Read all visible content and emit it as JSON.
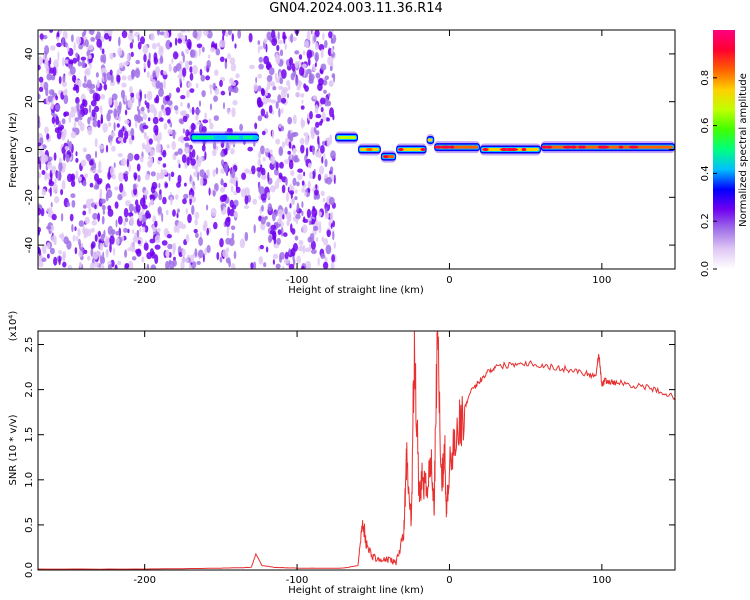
{
  "title": "GN04.2024.003.11.36.R14",
  "chart_data": [
    {
      "type": "heatmap",
      "name": "spectrogram",
      "xlabel": "Height of straight line (km)",
      "ylabel": "Frequency (Hz)",
      "xlim": [
        -270,
        148
      ],
      "ylim": [
        -50,
        50
      ],
      "xticks": [
        -200,
        -100,
        0,
        100
      ],
      "yticks": [
        -40,
        -20,
        0,
        20,
        40
      ],
      "noise_region_x": [
        -270,
        -75
      ],
      "signal_segments": [
        {
          "x0": -170,
          "x1": -125,
          "freq": 5,
          "amp": 0.45
        },
        {
          "x0": -75,
          "x1": -60,
          "freq": 5,
          "amp": 0.7
        },
        {
          "x0": -60,
          "x1": -45,
          "freq": 0,
          "amp": 0.8
        },
        {
          "x0": -45,
          "x1": -35,
          "freq": -3,
          "amp": 0.95
        },
        {
          "x0": -35,
          "x1": -15,
          "freq": 0,
          "amp": 0.9
        },
        {
          "x0": -15,
          "x1": -10,
          "freq": 4,
          "amp": 0.75
        },
        {
          "x0": -10,
          "x1": 20,
          "freq": 1,
          "amp": 0.95
        },
        {
          "x0": 20,
          "x1": 60,
          "freq": 0,
          "amp": 0.9
        },
        {
          "x0": 60,
          "x1": 148,
          "freq": 1,
          "amp": 0.95
        }
      ],
      "colorbar": {
        "label": "Normalized spectral amplitude",
        "range": [
          0,
          1
        ],
        "ticks": [
          0.0,
          0.2,
          0.4,
          0.6,
          0.8
        ],
        "colors": [
          "#ffffff",
          "#e0c8f4",
          "#a070e8",
          "#7000f0",
          "#0000ff",
          "#00c0ff",
          "#00ff80",
          "#40ff00",
          "#c0ff00",
          "#ffd000",
          "#ff6000",
          "#ff0030",
          "#ff0080"
        ]
      }
    },
    {
      "type": "line",
      "name": "snr",
      "xlabel": "Height of straight line (km)",
      "ylabel": "SNR (10 * v/v)",
      "multiplier": "(x10⁴)",
      "xlim": [
        -270,
        148
      ],
      "ylim": [
        0,
        2.65
      ],
      "xticks": [
        -200,
        -100,
        0,
        100
      ],
      "yticks": [
        0.0,
        0.5,
        1.0,
        1.5,
        2.0,
        2.5
      ],
      "color": "#e83030",
      "x": [
        -270,
        -200,
        -150,
        -130,
        -127,
        -123,
        -115,
        -100,
        -70,
        -60,
        -57,
        -54,
        -50,
        -45,
        -40,
        -35,
        -30,
        -28,
        -25,
        -23,
        -20,
        -18,
        -15,
        -12,
        -10,
        -8,
        -5,
        -3,
        -2,
        0,
        5,
        10,
        15,
        20,
        25,
        30,
        40,
        50,
        60,
        70,
        80,
        90,
        96,
        98,
        100,
        102,
        105,
        110,
        120,
        130,
        140,
        148
      ],
      "y": [
        0.01,
        0.01,
        0.02,
        0.03,
        0.18,
        0.05,
        0.03,
        0.02,
        0.02,
        0.05,
        0.55,
        0.25,
        0.15,
        0.1,
        0.12,
        0.08,
        0.4,
        1.3,
        0.5,
        2.62,
        0.8,
        1.0,
        0.9,
        1.2,
        0.7,
        2.6,
        1.0,
        1.3,
        0.6,
        1.2,
        1.5,
        1.8,
        2.0,
        2.1,
        2.2,
        2.25,
        2.28,
        2.3,
        2.27,
        2.24,
        2.22,
        2.18,
        2.15,
        2.4,
        2.05,
        2.1,
        2.08,
        2.08,
        2.05,
        2.02,
        1.97,
        1.91
      ]
    }
  ]
}
